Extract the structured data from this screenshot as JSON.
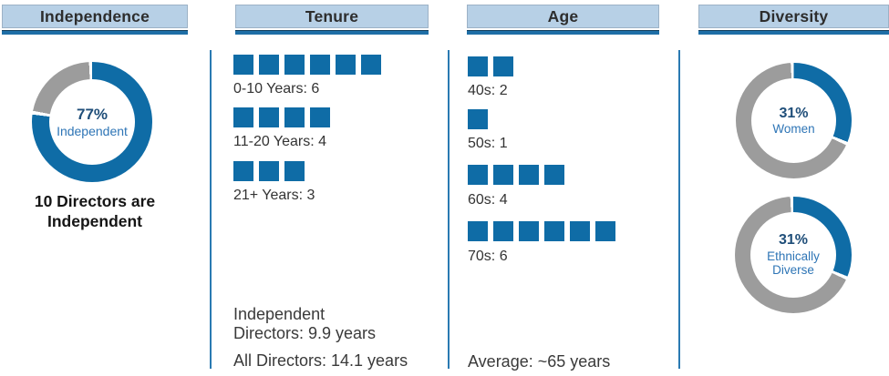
{
  "colors": {
    "blue": "#0f6ca6",
    "gray": "#9c9c9c",
    "header_bg": "#b7d0e6",
    "header_underline": "#1e6ea6",
    "divider": "#2a7ab2",
    "navy_text": "#1f4e79",
    "blue_text": "#2e75b6"
  },
  "chart_data": [
    {
      "type": "pie",
      "title": "Independence",
      "slices": [
        {
          "label": "Independent",
          "value": 77
        },
        {
          "label": "Not independent",
          "value": 23
        }
      ],
      "center": {
        "value": "77%",
        "label_lines": [
          "Independent"
        ]
      },
      "caption_lines": [
        "10 Directors are",
        "Independent"
      ]
    },
    {
      "type": "bar",
      "title": "Tenure",
      "rows": [
        {
          "label": "0-10 Years: 6",
          "count": 6
        },
        {
          "label": "11-20 Years: 4",
          "count": 4
        },
        {
          "label": "21+ Years: 3",
          "count": 3
        }
      ],
      "footnotes": [
        {
          "lines": [
            "Independent",
            "Directors: 9.9 years"
          ]
        },
        {
          "lines": [
            "All Directors: 14.1 years"
          ]
        }
      ]
    },
    {
      "type": "bar",
      "title": "Age",
      "rows": [
        {
          "label": "40s: 2",
          "count": 2
        },
        {
          "label": "50s: 1",
          "count": 1
        },
        {
          "label": "60s: 4",
          "count": 4
        },
        {
          "label": "70s: 6",
          "count": 6
        }
      ],
      "footnotes": [
        {
          "lines": [
            "Average: ~65 years"
          ]
        }
      ]
    },
    {
      "type": "pie",
      "title": "Diversity",
      "donuts": [
        {
          "slices": [
            {
              "label": "Women",
              "value": 31
            },
            {
              "label": "Other",
              "value": 69
            }
          ],
          "center": {
            "value": "31%",
            "label_lines": [
              "Women"
            ]
          }
        },
        {
          "slices": [
            {
              "label": "Ethnically Diverse",
              "value": 31
            },
            {
              "label": "Other",
              "value": 69
            }
          ],
          "center": {
            "value": "31%",
            "label_lines": [
              "Ethnically",
              "Diverse"
            ]
          }
        }
      ]
    }
  ]
}
